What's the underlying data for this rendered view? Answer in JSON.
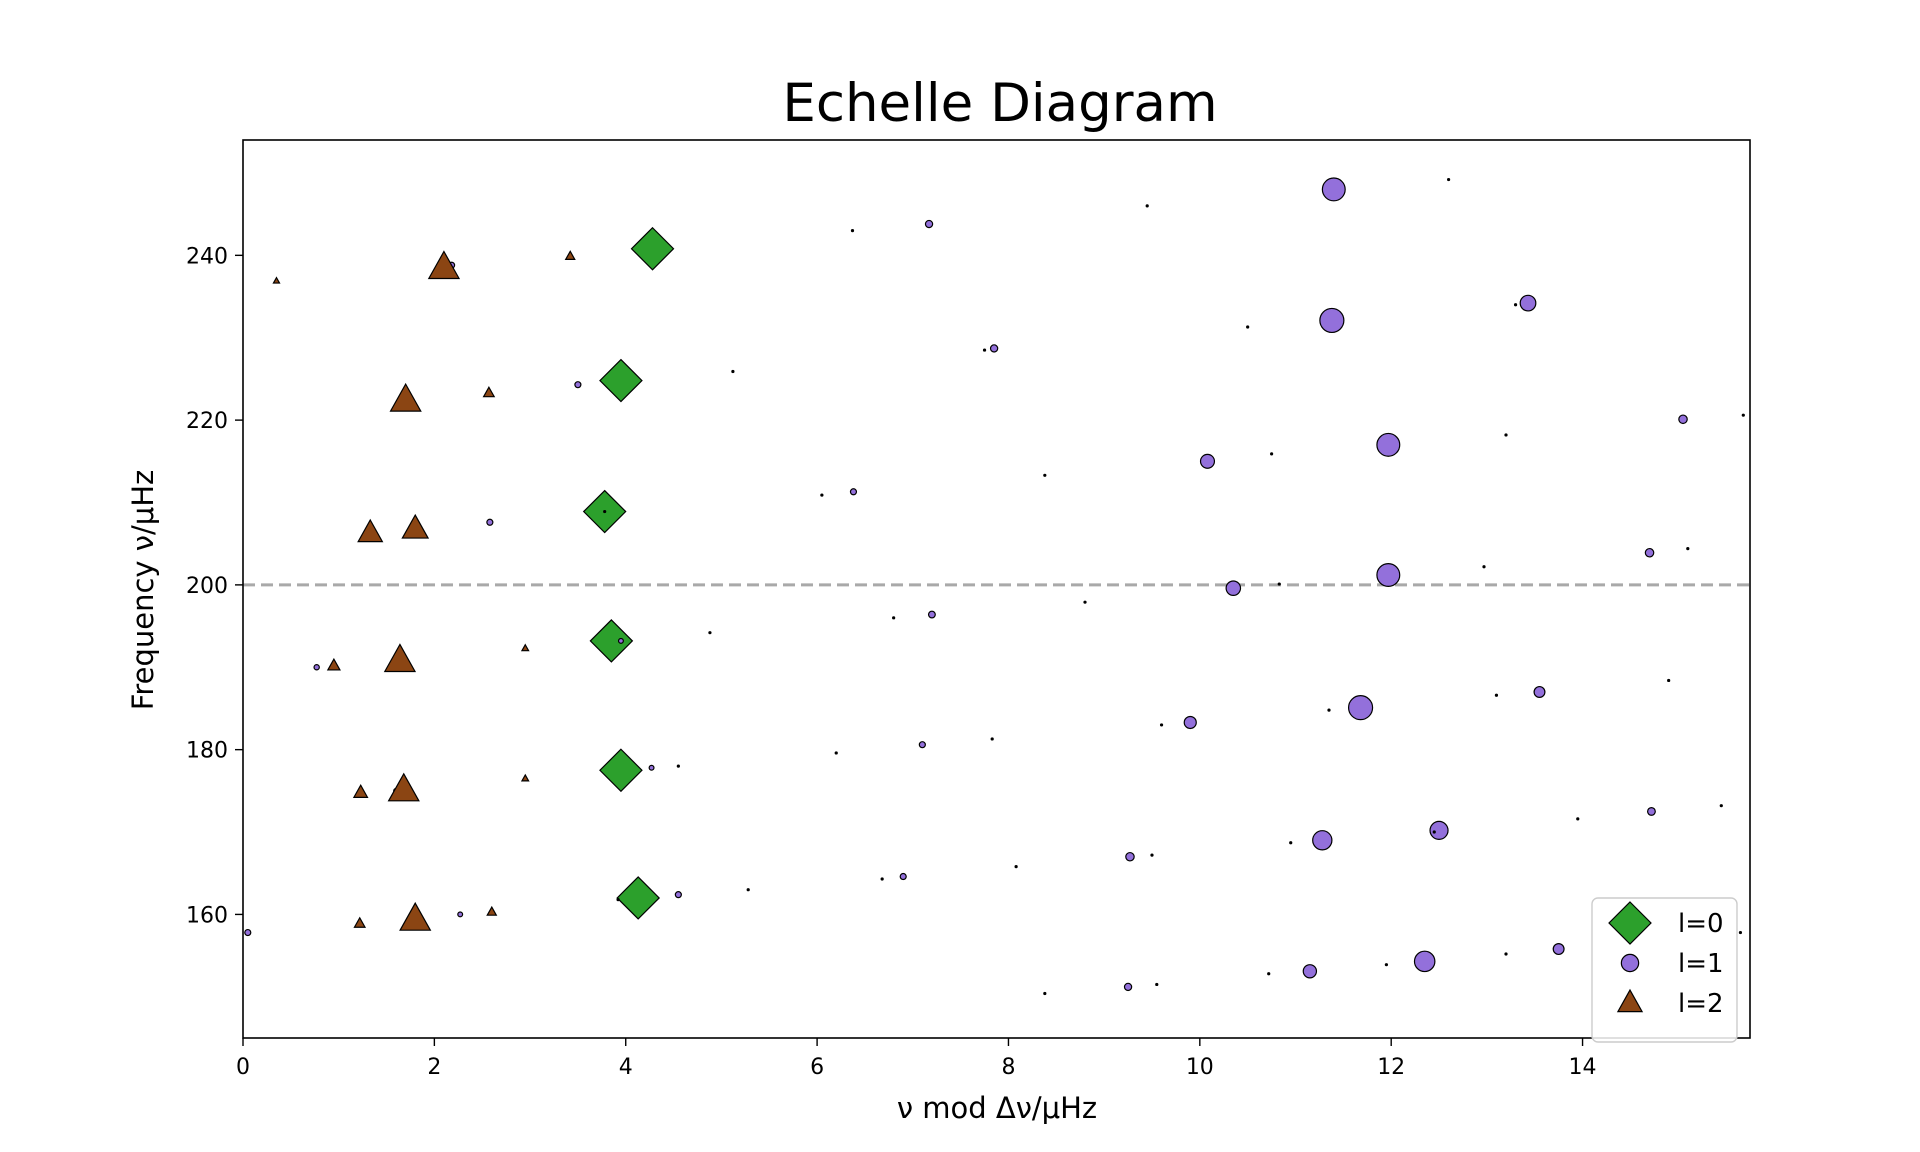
{
  "chart_data": {
    "type": "scatter",
    "title": "Echelle Diagram",
    "xlabel": "ν mod Δν/μHz",
    "ylabel": "Frequency ν/μHz",
    "xlim": [
      0,
      15.75
    ],
    "ylim": [
      145,
      254
    ],
    "xticks": [
      0,
      2,
      4,
      6,
      8,
      10,
      12,
      14
    ],
    "yticks": [
      160,
      180,
      200,
      220,
      240
    ],
    "grid": false,
    "legend_placement": "lower-right",
    "reference_line": {
      "y": 200,
      "style": "dashed",
      "color": "#a9a9a9"
    },
    "series": [
      {
        "name": "l=0",
        "marker": "diamond",
        "color": "#2ca02c",
        "points": [
          {
            "x": 4.13,
            "y": 162.0,
            "s": 1.0
          },
          {
            "x": 3.95,
            "y": 177.5,
            "s": 1.0
          },
          {
            "x": 3.85,
            "y": 193.2,
            "s": 1.0
          },
          {
            "x": 3.78,
            "y": 208.9,
            "s": 1.0
          },
          {
            "x": 3.95,
            "y": 224.8,
            "s": 1.0
          },
          {
            "x": 4.28,
            "y": 240.8,
            "s": 1.0
          }
        ]
      },
      {
        "name": "l=1",
        "marker": "circle",
        "color": "#9370db",
        "points": [
          {
            "x": 0.05,
            "y": 157.8,
            "s": 0.25
          },
          {
            "x": 2.27,
            "y": 160.0,
            "s": 0.2
          },
          {
            "x": 4.55,
            "y": 162.4,
            "s": 0.25
          },
          {
            "x": 6.9,
            "y": 164.6,
            "s": 0.25
          },
          {
            "x": 9.25,
            "y": 151.2,
            "s": 0.3
          },
          {
            "x": 11.15,
            "y": 153.1,
            "s": 0.55
          },
          {
            "x": 12.35,
            "y": 154.3,
            "s": 0.85
          },
          {
            "x": 13.75,
            "y": 155.8,
            "s": 0.45
          },
          {
            "x": 1.6,
            "y": 175.0,
            "s": 0.2
          },
          {
            "x": 4.27,
            "y": 177.8,
            "s": 0.2
          },
          {
            "x": 7.1,
            "y": 180.6,
            "s": 0.25
          },
          {
            "x": 9.27,
            "y": 167.0,
            "s": 0.35
          },
          {
            "x": 11.28,
            "y": 169.0,
            "s": 0.8
          },
          {
            "x": 12.5,
            "y": 170.2,
            "s": 0.75
          },
          {
            "x": 14.72,
            "y": 172.5,
            "s": 0.32
          },
          {
            "x": 0.77,
            "y": 190.0,
            "s": 0.22
          },
          {
            "x": 3.95,
            "y": 193.2,
            "s": 0.2
          },
          {
            "x": 7.2,
            "y": 196.4,
            "s": 0.28
          },
          {
            "x": 9.9,
            "y": 183.3,
            "s": 0.5
          },
          {
            "x": 11.68,
            "y": 185.1,
            "s": 1.0
          },
          {
            "x": 13.55,
            "y": 187.0,
            "s": 0.45
          },
          {
            "x": 2.58,
            "y": 207.6,
            "s": 0.25
          },
          {
            "x": 6.38,
            "y": 211.3,
            "s": 0.25
          },
          {
            "x": 10.35,
            "y": 199.6,
            "s": 0.6
          },
          {
            "x": 11.97,
            "y": 201.2,
            "s": 0.95
          },
          {
            "x": 14.7,
            "y": 203.9,
            "s": 0.35
          },
          {
            "x": 3.5,
            "y": 224.3,
            "s": 0.25
          },
          {
            "x": 7.85,
            "y": 228.7,
            "s": 0.3
          },
          {
            "x": 10.08,
            "y": 215.0,
            "s": 0.58
          },
          {
            "x": 11.97,
            "y": 217.0,
            "s": 0.95
          },
          {
            "x": 15.05,
            "y": 220.1,
            "s": 0.35
          },
          {
            "x": 2.18,
            "y": 238.8,
            "s": 0.25
          },
          {
            "x": 7.17,
            "y": 243.8,
            "s": 0.3
          },
          {
            "x": 11.38,
            "y": 232.1,
            "s": 1.0
          },
          {
            "x": 13.43,
            "y": 234.2,
            "s": 0.65
          },
          {
            "x": 11.4,
            "y": 248.0,
            "s": 0.95
          }
        ]
      },
      {
        "name": "l=2",
        "marker": "triangle",
        "color": "#8b4513",
        "points": [
          {
            "x": 1.22,
            "y": 158.9,
            "s": 0.35
          },
          {
            "x": 1.8,
            "y": 159.4,
            "s": 1.0
          },
          {
            "x": 2.6,
            "y": 160.3,
            "s": 0.3
          },
          {
            "x": 1.23,
            "y": 174.8,
            "s": 0.45
          },
          {
            "x": 1.68,
            "y": 175.1,
            "s": 1.0
          },
          {
            "x": 2.95,
            "y": 176.5,
            "s": 0.22
          },
          {
            "x": 0.95,
            "y": 190.2,
            "s": 0.4
          },
          {
            "x": 1.64,
            "y": 190.8,
            "s": 1.0
          },
          {
            "x": 2.95,
            "y": 192.3,
            "s": 0.22
          },
          {
            "x": 1.33,
            "y": 206.3,
            "s": 0.8
          },
          {
            "x": 1.8,
            "y": 206.8,
            "s": 0.85
          },
          {
            "x": 1.7,
            "y": 222.4,
            "s": 1.0
          },
          {
            "x": 2.57,
            "y": 223.3,
            "s": 0.35
          },
          {
            "x": 2.1,
            "y": 238.5,
            "s": 1.0
          },
          {
            "x": 3.42,
            "y": 239.9,
            "s": 0.3
          },
          {
            "x": 0.35,
            "y": 236.9,
            "s": 0.2
          }
        ]
      },
      {
        "name": "",
        "marker": "dot",
        "color": "#000000",
        "points": [
          {
            "x": 3.92,
            "y": 161.8
          },
          {
            "x": 5.28,
            "y": 163.0
          },
          {
            "x": 6.68,
            "y": 164.3
          },
          {
            "x": 8.08,
            "y": 165.8
          },
          {
            "x": 8.38,
            "y": 150.4
          },
          {
            "x": 9.55,
            "y": 151.5
          },
          {
            "x": 10.72,
            "y": 152.8
          },
          {
            "x": 11.95,
            "y": 153.9
          },
          {
            "x": 13.2,
            "y": 155.2
          },
          {
            "x": 15.65,
            "y": 157.8
          },
          {
            "x": 4.55,
            "y": 178.0
          },
          {
            "x": 6.2,
            "y": 179.6
          },
          {
            "x": 7.83,
            "y": 181.3
          },
          {
            "x": 9.5,
            "y": 167.2
          },
          {
            "x": 10.95,
            "y": 168.7
          },
          {
            "x": 12.45,
            "y": 170.0
          },
          {
            "x": 13.95,
            "y": 171.6
          },
          {
            "x": 15.45,
            "y": 173.2
          },
          {
            "x": 4.88,
            "y": 194.2
          },
          {
            "x": 6.8,
            "y": 196.0
          },
          {
            "x": 8.8,
            "y": 197.9
          },
          {
            "x": 9.6,
            "y": 183.0
          },
          {
            "x": 11.35,
            "y": 184.8
          },
          {
            "x": 13.1,
            "y": 186.6
          },
          {
            "x": 14.9,
            "y": 188.4
          },
          {
            "x": 3.78,
            "y": 208.9
          },
          {
            "x": 6.05,
            "y": 210.9
          },
          {
            "x": 8.38,
            "y": 213.3
          },
          {
            "x": 10.83,
            "y": 200.1
          },
          {
            "x": 12.97,
            "y": 202.2
          },
          {
            "x": 15.1,
            "y": 204.4
          },
          {
            "x": 5.12,
            "y": 225.9
          },
          {
            "x": 7.75,
            "y": 228.5
          },
          {
            "x": 10.75,
            "y": 215.9
          },
          {
            "x": 13.2,
            "y": 218.2
          },
          {
            "x": 15.68,
            "y": 220.6
          },
          {
            "x": 6.37,
            "y": 243.0
          },
          {
            "x": 9.45,
            "y": 246.0
          },
          {
            "x": 10.5,
            "y": 231.3
          },
          {
            "x": 13.3,
            "y": 234.0
          },
          {
            "x": 12.6,
            "y": 249.2
          }
        ]
      }
    ]
  }
}
